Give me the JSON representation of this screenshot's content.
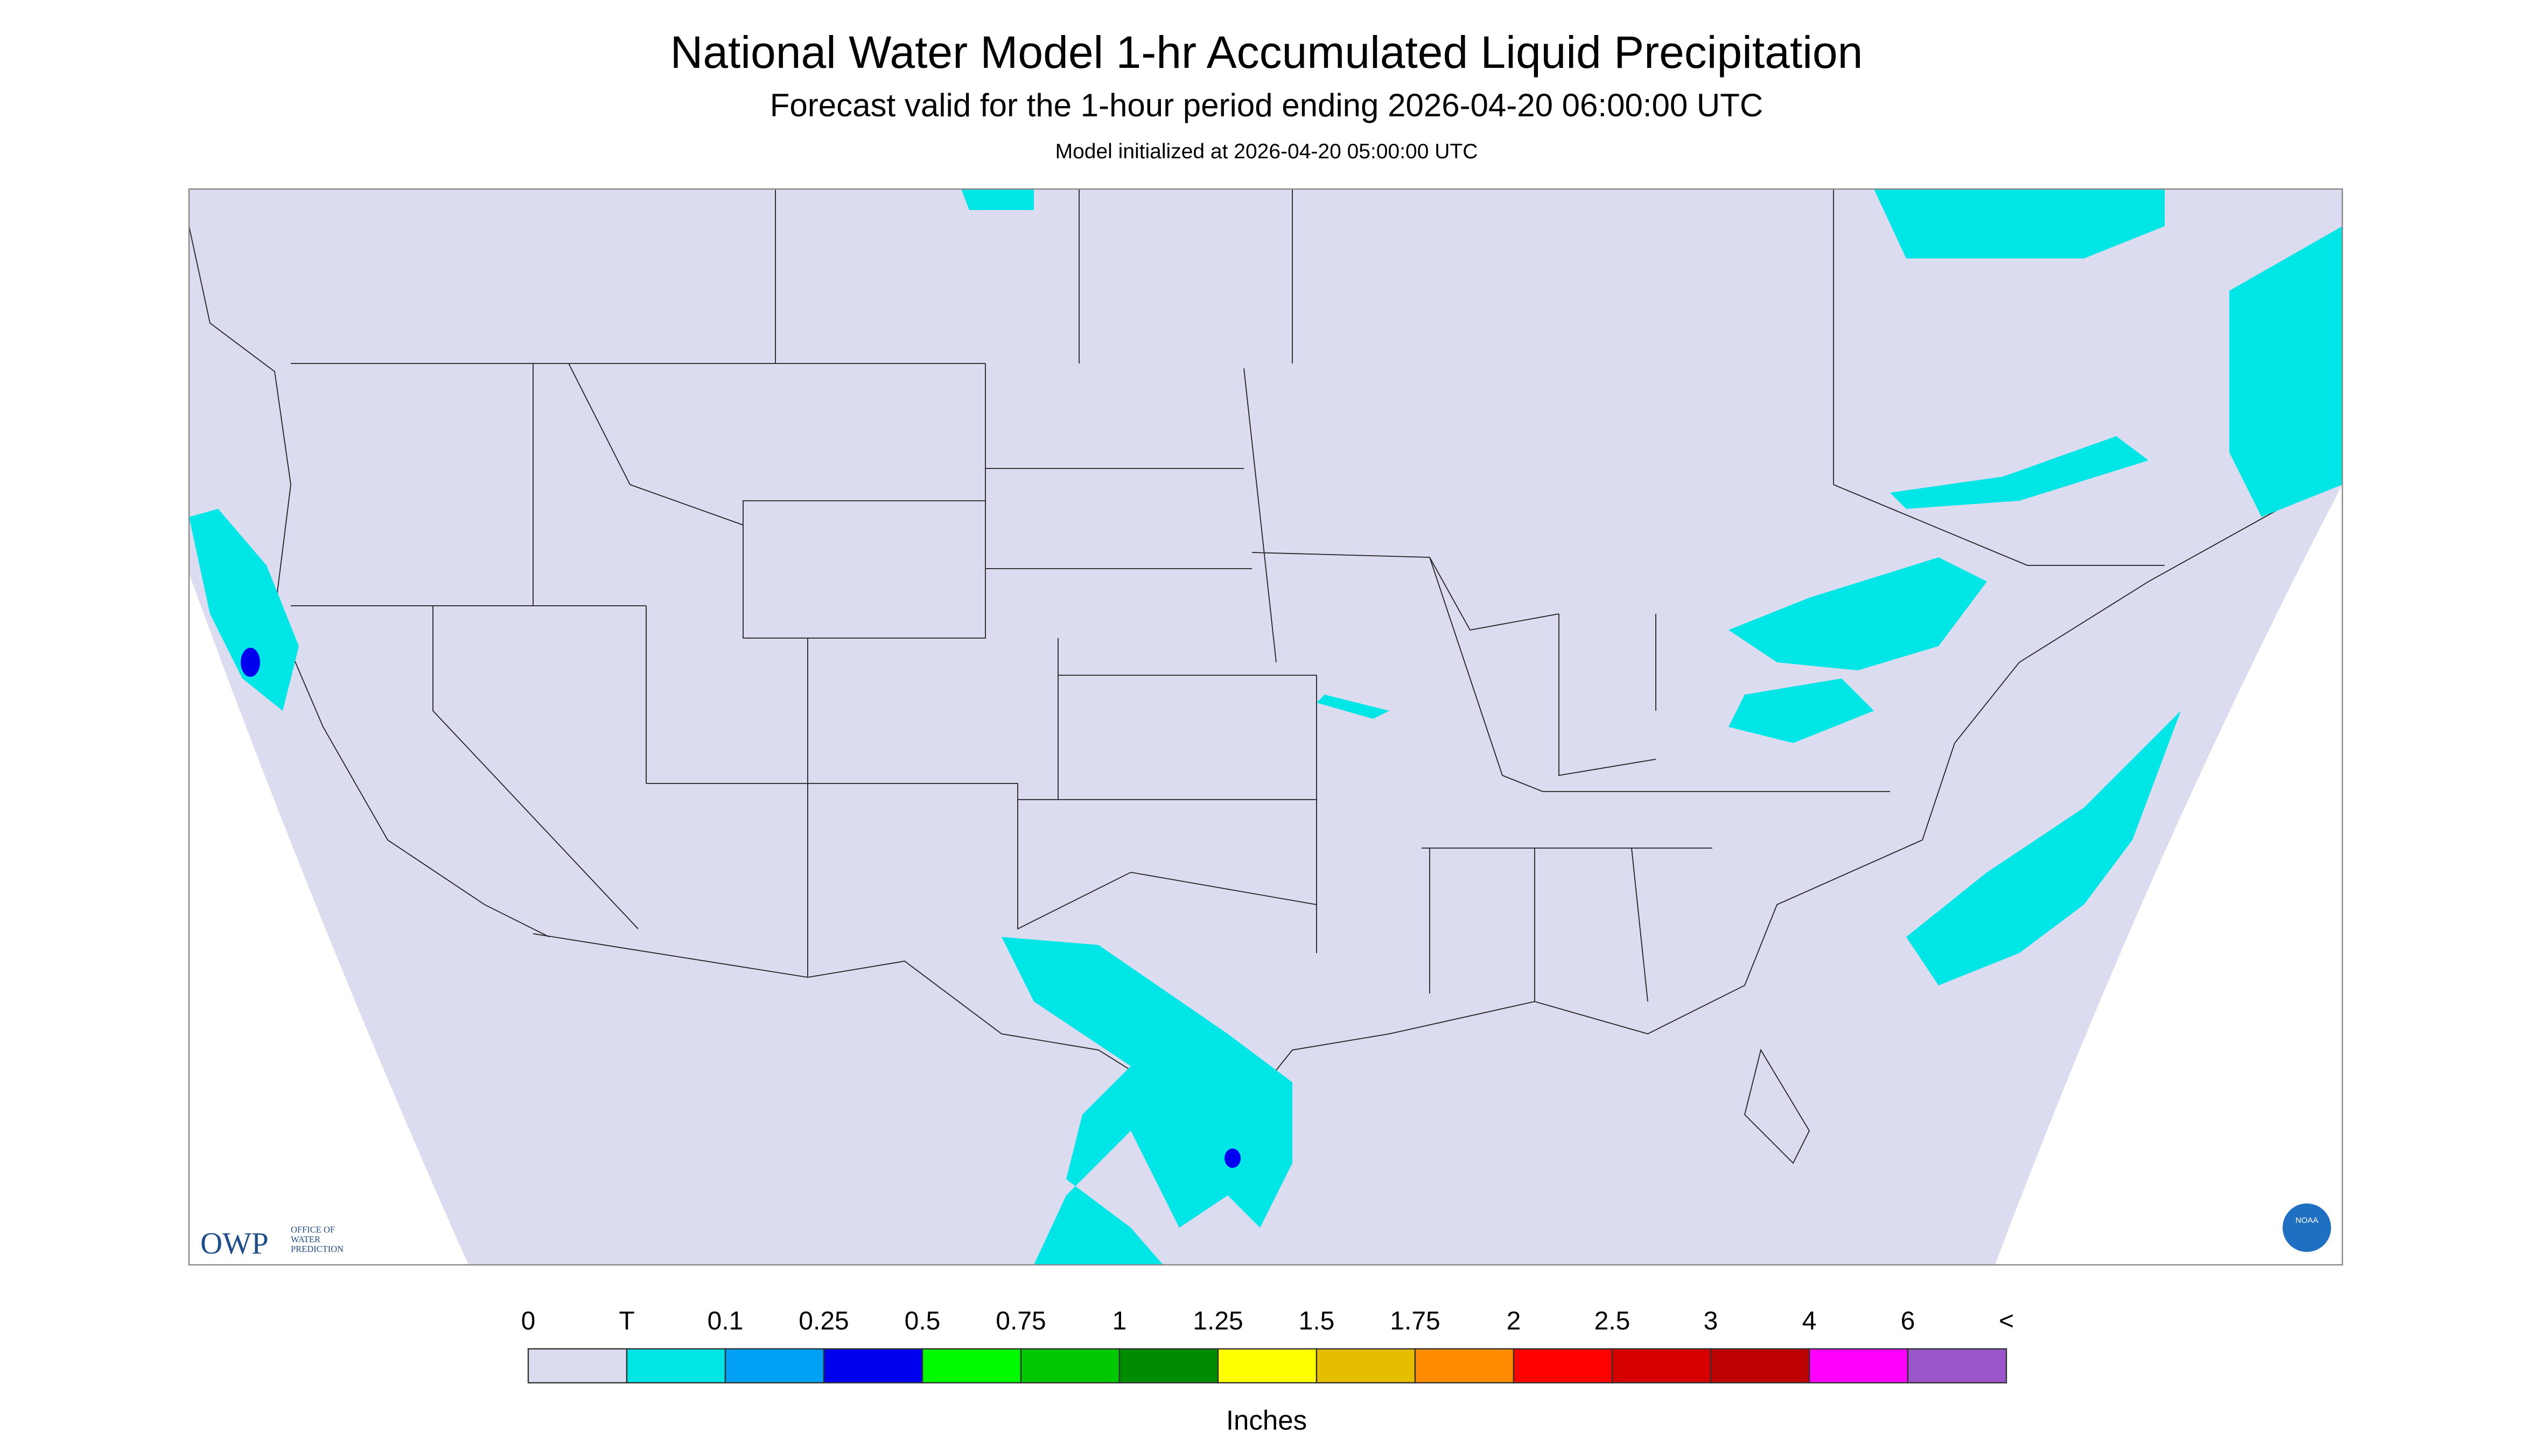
{
  "header": {
    "title": "National Water Model 1-hr Accumulated Liquid Precipitation",
    "subtitle": "Forecast valid for the 1-hour period ending 2026-04-20 06:00:00 UTC",
    "init": "Model initialized at 2026-04-20 05:00:00 UTC"
  },
  "logos": {
    "owp": "OWP",
    "owp_sub": [
      "OFFICE OF",
      "WATER",
      "PREDICTION"
    ],
    "noaa": "NOAA"
  },
  "legend": {
    "labels": [
      "0",
      "T",
      "0.1",
      "0.25",
      "0.5",
      "0.75",
      "1",
      "1.25",
      "1.5",
      "1.75",
      "2",
      "2.5",
      "3",
      "4",
      "6",
      "<"
    ],
    "colors": [
      "#dcdcf0",
      "#00e6e6",
      "#00a0f5",
      "#0000f0",
      "#00fa00",
      "#00c800",
      "#008c00",
      "#ffff00",
      "#e6be00",
      "#ff8c00",
      "#ff0000",
      "#d70000",
      "#bd0000",
      "#ff00ff",
      "#9955c9"
    ],
    "unit": "Inches"
  }
}
